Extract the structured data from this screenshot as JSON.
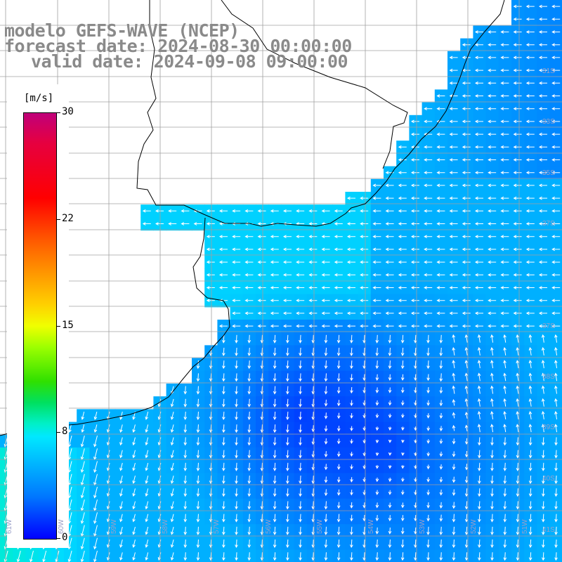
{
  "title": {
    "model": "modelo GEFS-WAVE (NCEP)",
    "forecast": "forecast date: 2024-08-30 00:00:00",
    "valid": "valid date: 2024-09-08 09:00:00"
  },
  "legend": {
    "unit": "[m/s]",
    "ticks": [
      "30",
      "22",
      "15",
      "8",
      "0"
    ],
    "tick_values": [
      30,
      22,
      15,
      8,
      0
    ]
  },
  "lat_labels": [
    "31S",
    "33S",
    "35S",
    "37S",
    "39S",
    "41S",
    "37S",
    "38S",
    "39S",
    "40S"
  ],
  "lon_labels": [
    "61W",
    "60W",
    "59W",
    "58W",
    "57W",
    "56W",
    "55W",
    "54W",
    "53W",
    "52W",
    "51W"
  ],
  "colors": {
    "land": "#ffffff",
    "grid": "#a0a0a0",
    "coast": "#000000",
    "arrow": "#ffffff",
    "title_text": "#8a8a8a"
  }
}
